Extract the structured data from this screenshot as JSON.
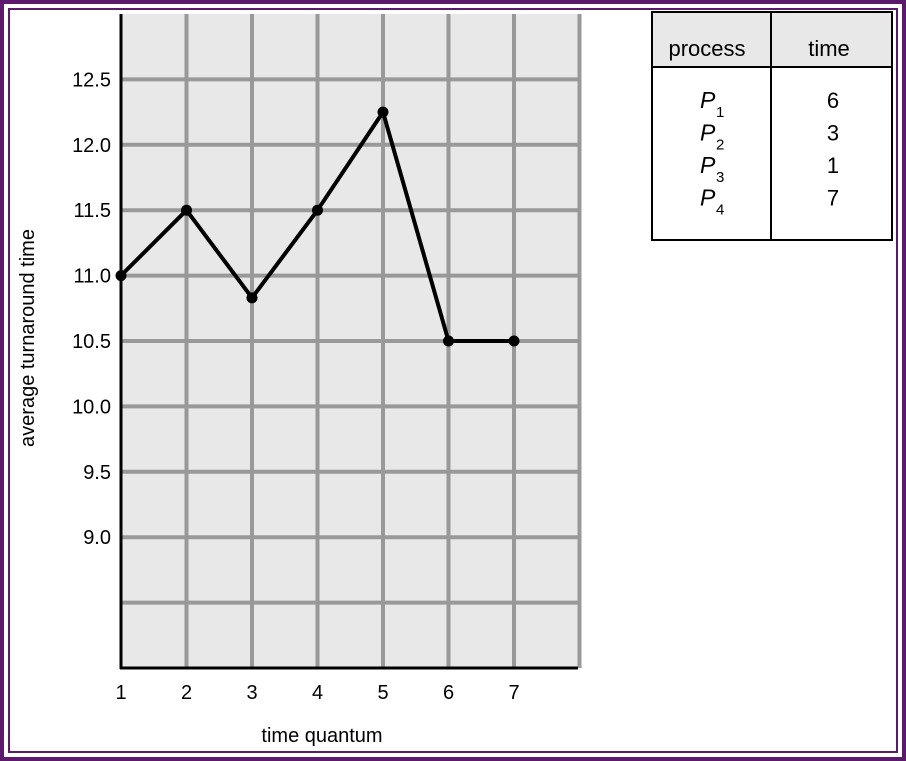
{
  "chart_data": {
    "type": "line",
    "title": "",
    "xlabel": "time quantum",
    "ylabel": "average turnaround time",
    "x": [
      1,
      2,
      3,
      4,
      5,
      6,
      7
    ],
    "series": [
      {
        "values": [
          11.0,
          11.5,
          10.83,
          11.5,
          12.25,
          10.5,
          10.5
        ]
      }
    ],
    "xlim": [
      1,
      8
    ],
    "ylim": [
      8.0,
      13.0
    ],
    "xticks": [
      "1",
      "2",
      "3",
      "4",
      "5",
      "6",
      "7"
    ],
    "yticks": [
      "9.0",
      "9.5",
      "10.0",
      "10.5",
      "11.0",
      "11.5",
      "12.0",
      "12.5"
    ],
    "grid": true,
    "background": "#e8e8e8",
    "grid_color": "#999999",
    "line_color": "#000000"
  },
  "process_table": {
    "headers": [
      "process",
      "time"
    ],
    "rows": [
      {
        "name": "P",
        "sub": "1",
        "time": "6"
      },
      {
        "name": "P",
        "sub": "2",
        "time": "3"
      },
      {
        "name": "P",
        "sub": "3",
        "time": "1"
      },
      {
        "name": "P",
        "sub": "4",
        "time": "7"
      }
    ]
  },
  "frame": {
    "color": "#5b1a6b"
  }
}
